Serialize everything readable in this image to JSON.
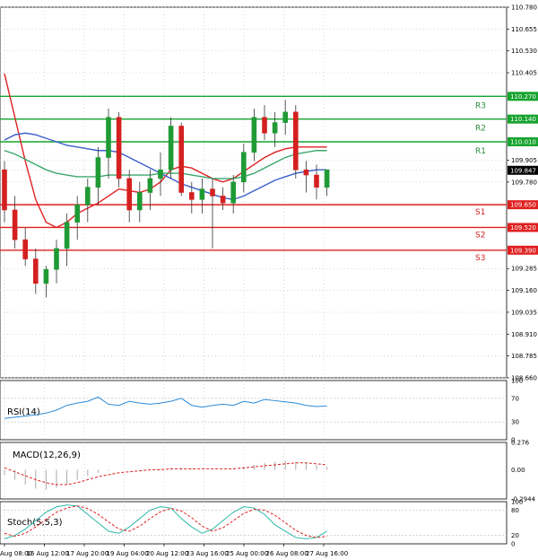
{
  "chart_data": {
    "type": "candlestick",
    "title": "",
    "price_axis": {
      "ticks": [
        "110.780",
        "110.655",
        "110.530",
        "110.405",
        "110.270",
        "110.140",
        "110.010",
        "109.905",
        "109.847",
        "109.780",
        "109.650",
        "109.520",
        "109.390",
        "109.285",
        "109.160",
        "109.035",
        "108.910",
        "108.785",
        "108.660"
      ],
      "ylim": [
        108.66,
        110.78
      ],
      "current_price": "109.847"
    },
    "x_axis": {
      "ticks": [
        "Aug 08:00",
        "16 Aug 12:00",
        "17 Aug 20:00",
        "19 Aug 04:00",
        "20 Aug 12:00",
        "23 Aug 16:00",
        "25 Aug 00:00",
        "26 Aug 08:00",
        "27 Aug 16:00"
      ]
    },
    "levels": [
      {
        "name": "R3",
        "value": 110.27,
        "label": "110.270",
        "type": "resistance",
        "color": "#16a32e"
      },
      {
        "name": "R2",
        "value": 110.14,
        "label": "110.140",
        "type": "resistance",
        "color": "#16a32e"
      },
      {
        "name": "R1",
        "value": 110.01,
        "label": "110.010",
        "type": "resistance",
        "color": "#16a32e"
      },
      {
        "name": "S1",
        "value": 109.65,
        "label": "109.650",
        "type": "support",
        "color": "#e02020"
      },
      {
        "name": "S2",
        "value": 109.52,
        "label": "109.520",
        "type": "support",
        "color": "#e02020"
      },
      {
        "name": "S3",
        "value": 109.39,
        "label": "109.390",
        "type": "support",
        "color": "#e02020"
      }
    ],
    "candles": [
      [
        109.85,
        109.9,
        109.55,
        109.62
      ],
      [
        109.62,
        109.7,
        109.4,
        109.45
      ],
      [
        109.45,
        109.52,
        109.3,
        109.34
      ],
      [
        109.34,
        109.4,
        109.14,
        109.2
      ],
      [
        109.2,
        109.3,
        109.12,
        109.28
      ],
      [
        109.28,
        109.45,
        109.2,
        109.4
      ],
      [
        109.4,
        109.6,
        109.3,
        109.55
      ],
      [
        109.55,
        109.7,
        109.45,
        109.65
      ],
      [
        109.65,
        109.8,
        109.55,
        109.75
      ],
      [
        109.75,
        109.98,
        109.65,
        109.92
      ],
      [
        109.92,
        110.2,
        109.8,
        110.15
      ],
      [
        110.15,
        110.18,
        109.75,
        109.8
      ],
      [
        109.8,
        109.85,
        109.55,
        109.62
      ],
      [
        109.62,
        109.78,
        109.55,
        109.72
      ],
      [
        109.72,
        109.85,
        109.62,
        109.8
      ],
      [
        109.8,
        109.95,
        109.7,
        109.85
      ],
      [
        109.85,
        110.15,
        109.8,
        110.1
      ],
      [
        110.1,
        110.12,
        109.7,
        109.72
      ],
      [
        109.72,
        109.78,
        109.6,
        109.68
      ],
      [
        109.68,
        109.8,
        109.6,
        109.74
      ],
      [
        109.74,
        109.8,
        109.4,
        109.7
      ],
      [
        109.7,
        109.75,
        109.62,
        109.66
      ],
      [
        109.66,
        109.82,
        109.6,
        109.78
      ],
      [
        109.78,
        110.0,
        109.72,
        109.95
      ],
      [
        109.95,
        110.2,
        109.9,
        110.15
      ],
      [
        110.15,
        110.22,
        110.02,
        110.06
      ],
      [
        110.06,
        110.18,
        109.98,
        110.12
      ],
      [
        110.12,
        110.25,
        110.05,
        110.18
      ],
      [
        110.18,
        110.22,
        109.8,
        109.85
      ],
      [
        109.85,
        109.9,
        109.72,
        109.82
      ],
      [
        109.82,
        109.88,
        109.68,
        109.75
      ],
      [
        109.75,
        109.85,
        109.7,
        109.85
      ]
    ],
    "moving_averages": [
      {
        "color": "#e02020",
        "values": [
          110.4,
          110.15,
          109.9,
          109.68,
          109.55,
          109.52,
          109.55,
          109.6,
          109.63,
          109.66,
          109.7,
          109.74,
          109.73,
          109.72,
          109.74,
          109.78,
          109.85,
          109.87,
          109.86,
          109.83,
          109.8,
          109.78,
          109.8,
          109.84,
          109.88,
          109.92,
          109.95,
          109.97,
          109.98,
          109.98,
          109.98,
          109.98
        ]
      },
      {
        "color": "#3a5fcd",
        "values": [
          110.02,
          110.05,
          110.06,
          110.05,
          110.03,
          110.01,
          109.99,
          109.98,
          109.97,
          109.96,
          109.96,
          109.95,
          109.92,
          109.89,
          109.86,
          109.83,
          109.8,
          109.77,
          109.75,
          109.73,
          109.71,
          109.69,
          109.68,
          109.7,
          109.73,
          109.76,
          109.79,
          109.81,
          109.83,
          109.84,
          109.85,
          109.85
        ]
      },
      {
        "color": "#3aa86b",
        "values": [
          109.96,
          109.94,
          109.91,
          109.88,
          109.85,
          109.83,
          109.82,
          109.81,
          109.81,
          109.81,
          109.82,
          109.82,
          109.82,
          109.82,
          109.82,
          109.83,
          109.83,
          109.83,
          109.82,
          109.81,
          109.8,
          109.8,
          109.8,
          109.81,
          109.83,
          109.86,
          109.89,
          109.92,
          109.94,
          109.95,
          109.96,
          109.96
        ]
      }
    ],
    "rsi": {
      "label": "RSI(14)",
      "ticks": [
        "100",
        "70",
        "30",
        "0"
      ],
      "values": [
        36,
        38,
        40,
        42,
        45,
        50,
        58,
        62,
        65,
        72,
        60,
        58,
        65,
        62,
        60,
        62,
        65,
        70,
        58,
        55,
        58,
        60,
        58,
        65,
        62,
        68,
        66,
        64,
        62,
        58,
        56,
        57
      ]
    },
    "macd": {
      "label": "MACD(12,26,9)",
      "ticks": [
        "0.276",
        "0.00",
        "-0.2944"
      ],
      "histogram": [
        -0.05,
        -0.1,
        -0.15,
        -0.19,
        -0.2,
        -0.18,
        -0.15,
        -0.1,
        -0.06,
        -0.03,
        -0.01,
        0.0,
        0.0,
        0.0,
        0.0,
        0.01,
        0.02,
        0.02,
        0.01,
        0.0,
        0.0,
        0.0,
        0.01,
        0.03,
        0.05,
        0.07,
        0.08,
        0.09,
        0.08,
        0.07,
        0.05,
        0.03
      ],
      "signal": [
        0.02,
        -0.02,
        -0.06,
        -0.1,
        -0.13,
        -0.15,
        -0.15,
        -0.13,
        -0.1,
        -0.07,
        -0.05,
        -0.03,
        -0.02,
        -0.01,
        0.0,
        0.0,
        0.01,
        0.01,
        0.01,
        0.01,
        0.01,
        0.01,
        0.01,
        0.02,
        0.03,
        0.04,
        0.05,
        0.06,
        0.07,
        0.07,
        0.06,
        0.05
      ]
    },
    "stoch": {
      "label": "Stoch(5,5,3)",
      "ticks": [
        "100",
        "80",
        "20",
        "0"
      ],
      "k": [
        12,
        20,
        35,
        55,
        75,
        88,
        92,
        90,
        70,
        50,
        30,
        25,
        40,
        60,
        80,
        88,
        85,
        60,
        40,
        25,
        35,
        55,
        75,
        88,
        85,
        70,
        45,
        30,
        15,
        12,
        15,
        30
      ],
      "d": [
        25,
        18,
        25,
        40,
        58,
        75,
        85,
        90,
        84,
        70,
        52,
        35,
        30,
        42,
        60,
        76,
        84,
        78,
        62,
        42,
        30,
        38,
        55,
        72,
        82,
        80,
        68,
        50,
        32,
        20,
        15,
        18
      ]
    }
  }
}
